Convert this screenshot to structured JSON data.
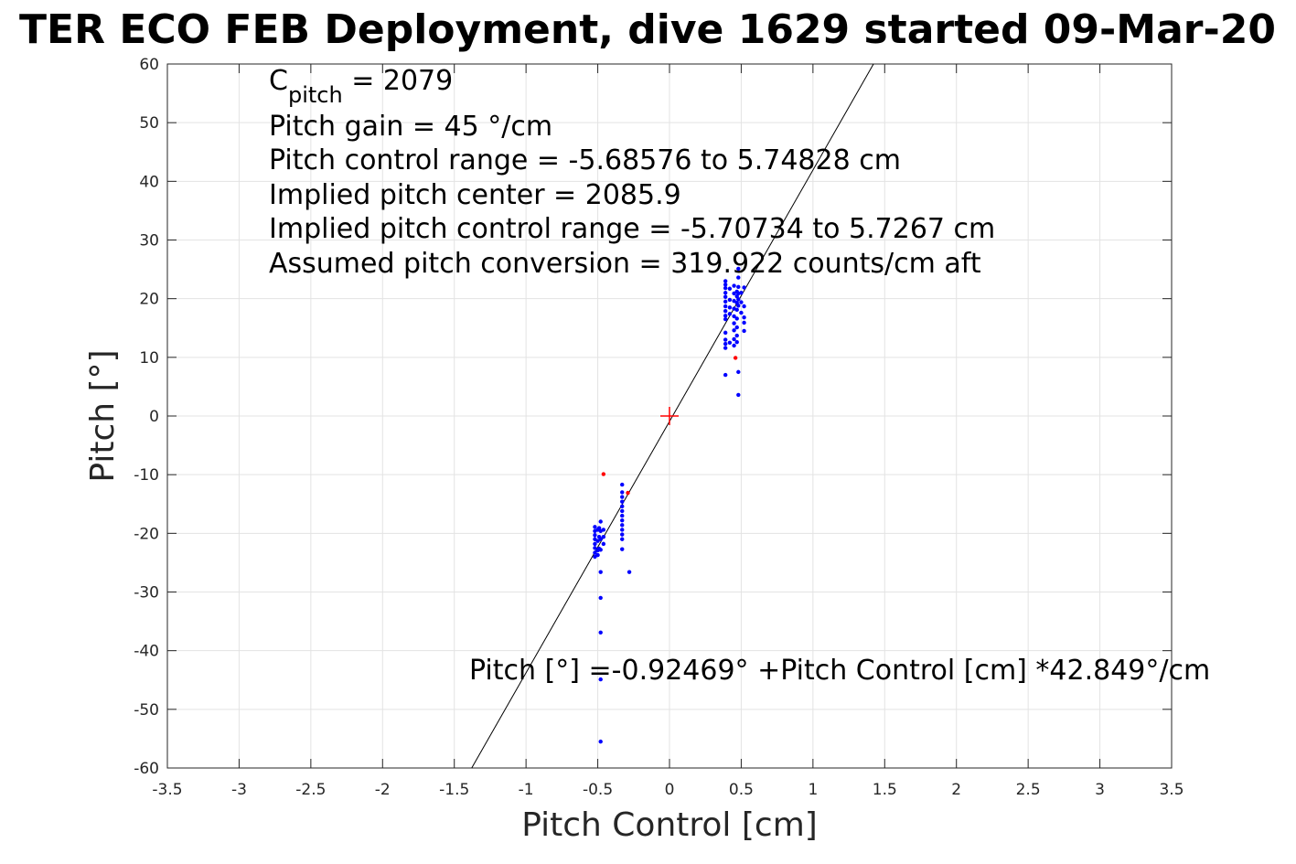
{
  "chart_data": {
    "type": "scatter",
    "title": "TER ECO FEB Deployment, dive 1629 started 09-Mar-20",
    "xlabel": "Pitch Control [cm]",
    "ylabel": "Pitch [°]",
    "xlim": [
      -3.5,
      3.5
    ],
    "ylim": [
      -60,
      60
    ],
    "x_ticks": [
      -3.5,
      -3,
      -2.5,
      -2,
      -1.5,
      -1,
      -0.5,
      0,
      0.5,
      1,
      1.5,
      2,
      2.5,
      3,
      3.5
    ],
    "x_tick_labels": [
      "-3.5",
      "-3",
      "-2.5",
      "-2",
      "-1.5",
      "-1",
      "-0.5",
      "0",
      "0.5",
      "1",
      "1.5",
      "2",
      "2.5",
      "3",
      "3.5"
    ],
    "y_ticks": [
      -60,
      -50,
      -40,
      -30,
      -20,
      -10,
      0,
      10,
      20,
      30,
      40,
      50,
      60
    ],
    "y_tick_labels": [
      "-60",
      "-50",
      "-40",
      "-30",
      "-20",
      "-10",
      "0",
      "10",
      "20",
      "30",
      "40",
      "50",
      "60"
    ],
    "grid": true,
    "annotations": {
      "cpitch_symbol": "C",
      "cpitch_subscript": "pitch",
      "cpitch_value": " = 2079",
      "pitch_gain": "Pitch gain = 45 °/cm",
      "control_range": "Pitch control range = -5.68576 to 5.74828 cm",
      "implied_center": "Implied pitch center = 2085.9",
      "implied_range": "Implied pitch control range = -5.70734 to 5.7267 cm",
      "conversion": "Assumed pitch conversion = 319.922 counts/cm aft",
      "fit_equation": "Pitch [°] =-0.92469° +Pitch Control [cm] *42.849°/cm"
    },
    "fit_line": {
      "intercept": -0.92469,
      "slope": 42.849,
      "color": "#000000"
    },
    "center_marker": {
      "x": 0,
      "y": 0,
      "color": "#ff0000"
    },
    "series": [
      {
        "color": "#0000ff",
        "points": [
          [
            0.39,
            23.0
          ],
          [
            0.39,
            22.4
          ],
          [
            0.39,
            21.8
          ],
          [
            0.39,
            21.0
          ],
          [
            0.39,
            20.3
          ],
          [
            0.39,
            19.5
          ],
          [
            0.39,
            18.7
          ],
          [
            0.39,
            17.9
          ],
          [
            0.39,
            17.1
          ],
          [
            0.39,
            16.5
          ],
          [
            0.39,
            14.2
          ],
          [
            0.39,
            13.0
          ],
          [
            0.39,
            12.3
          ],
          [
            0.39,
            11.6
          ],
          [
            0.39,
            7.0
          ],
          [
            0.42,
            21.7
          ],
          [
            0.42,
            19.8
          ],
          [
            0.42,
            18.5
          ],
          [
            0.42,
            17.4
          ],
          [
            0.42,
            12.5
          ],
          [
            0.45,
            22.2
          ],
          [
            0.45,
            20.9
          ],
          [
            0.45,
            19.6
          ],
          [
            0.45,
            18.3
          ],
          [
            0.45,
            17.0
          ],
          [
            0.45,
            15.8
          ],
          [
            0.45,
            14.6
          ],
          [
            0.45,
            13.1
          ],
          [
            0.45,
            12.0
          ],
          [
            0.47,
            21.2
          ],
          [
            0.47,
            20.4
          ],
          [
            0.47,
            19.3
          ],
          [
            0.47,
            18.1
          ],
          [
            0.47,
            16.6
          ],
          [
            0.47,
            15.1
          ],
          [
            0.47,
            13.7
          ],
          [
            0.47,
            12.6
          ],
          [
            0.48,
            25.1
          ],
          [
            0.48,
            23.6
          ],
          [
            0.48,
            22.0
          ],
          [
            0.48,
            20.9
          ],
          [
            0.48,
            19.9
          ],
          [
            0.48,
            18.8
          ],
          [
            0.48,
            7.5
          ],
          [
            0.48,
            3.6
          ],
          [
            0.5,
            21.0
          ],
          [
            0.5,
            19.4
          ],
          [
            0.5,
            17.6
          ],
          [
            0.52,
            21.9
          ],
          [
            0.52,
            18.7
          ],
          [
            0.52,
            16.8
          ],
          [
            0.52,
            15.9
          ],
          [
            0.52,
            14.5
          ],
          [
            -0.52,
            -18.9
          ],
          [
            -0.52,
            -19.6
          ],
          [
            -0.52,
            -20.3
          ],
          [
            -0.52,
            -21.0
          ],
          [
            -0.52,
            -21.8
          ],
          [
            -0.52,
            -22.5
          ],
          [
            -0.52,
            -23.3
          ],
          [
            -0.52,
            -24.0
          ],
          [
            -0.5,
            -19.4
          ],
          [
            -0.5,
            -21.3
          ],
          [
            -0.5,
            -22.9
          ],
          [
            -0.5,
            -23.7
          ],
          [
            -0.49,
            -19.1
          ],
          [
            -0.49,
            -20.6
          ],
          [
            -0.49,
            -22.6
          ],
          [
            -0.48,
            -18.0
          ],
          [
            -0.48,
            -19.6
          ],
          [
            -0.48,
            -21.0
          ],
          [
            -0.48,
            -22.8
          ],
          [
            -0.48,
            -26.6
          ],
          [
            -0.48,
            -31.0
          ],
          [
            -0.48,
            -36.9
          ],
          [
            -0.48,
            -44.9
          ],
          [
            -0.48,
            -55.5
          ],
          [
            -0.46,
            -19.4
          ],
          [
            -0.46,
            -20.6
          ],
          [
            -0.46,
            -21.8
          ],
          [
            -0.33,
            -11.7
          ],
          [
            -0.33,
            -13.0
          ],
          [
            -0.33,
            -13.8
          ],
          [
            -0.33,
            -14.6
          ],
          [
            -0.33,
            -15.4
          ],
          [
            -0.33,
            -16.2
          ],
          [
            -0.33,
            -17.0
          ],
          [
            -0.33,
            -17.8
          ],
          [
            -0.33,
            -18.6
          ],
          [
            -0.33,
            -19.4
          ],
          [
            -0.33,
            -20.2
          ],
          [
            -0.33,
            -21.0
          ],
          [
            -0.33,
            -22.7
          ],
          [
            -0.28,
            -26.6
          ]
        ]
      },
      {
        "color": "#ff0000",
        "points": [
          [
            -0.46,
            -9.9
          ],
          [
            0.46,
            9.9
          ],
          [
            -0.29,
            -13.1
          ]
        ]
      }
    ]
  }
}
